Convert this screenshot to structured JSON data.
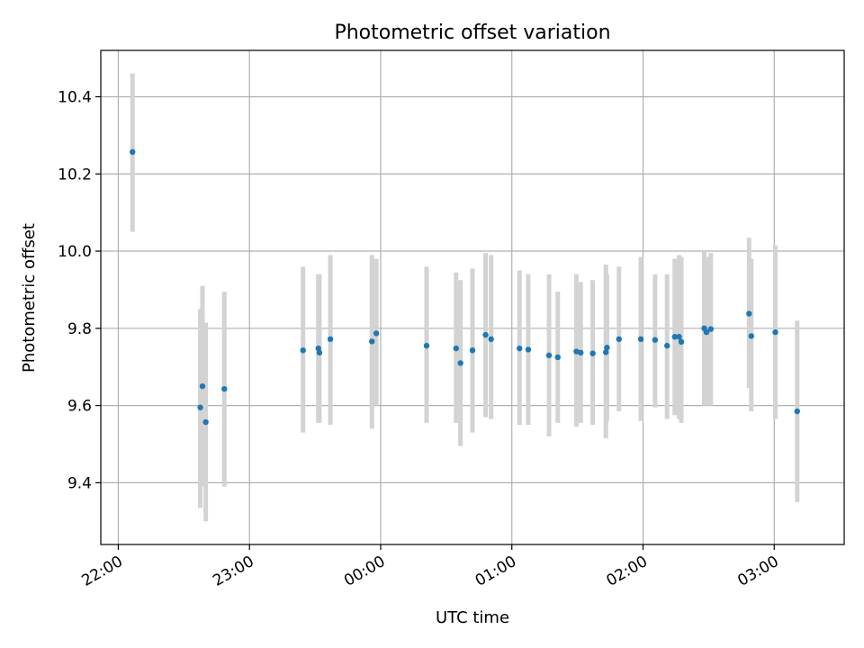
{
  "chart_data": {
    "type": "scatter",
    "title": "Photometric offset variation",
    "xlabel": "UTC time",
    "ylabel": "Photometric offset",
    "x_ticks": [
      "22:00",
      "23:00",
      "00:00",
      "01:00",
      "02:00",
      "03:00"
    ],
    "y_ticks": [
      "9.4",
      "9.6",
      "9.8",
      "10.0",
      "10.2",
      "10.4"
    ],
    "xlim_minutes_from_first_tick": [
      -8,
      332
    ],
    "ylim": [
      9.24,
      10.52
    ],
    "grid": true,
    "point_color": "#1f77b4",
    "errorbar_color": "#d3d3d3",
    "points": [
      {
        "t": 6.5,
        "y": 10.257,
        "lo": 10.05,
        "hi": 10.46
      },
      {
        "t": 37.5,
        "y": 9.595,
        "lo": 9.335,
        "hi": 9.85
      },
      {
        "t": 38.5,
        "y": 9.65,
        "lo": 9.39,
        "hi": 9.91
      },
      {
        "t": 40.0,
        "y": 9.557,
        "lo": 9.3,
        "hi": 9.815
      },
      {
        "t": 48.5,
        "y": 9.643,
        "lo": 9.39,
        "hi": 9.895
      },
      {
        "t": 84.5,
        "y": 9.743,
        "lo": 9.53,
        "hi": 9.96
      },
      {
        "t": 91.5,
        "y": 9.748,
        "lo": 9.555,
        "hi": 9.94
      },
      {
        "t": 92.0,
        "y": 9.737,
        "lo": 9.555,
        "hi": 9.94
      },
      {
        "t": 97.0,
        "y": 9.772,
        "lo": 9.55,
        "hi": 9.99
      },
      {
        "t": 116.0,
        "y": 9.766,
        "lo": 9.54,
        "hi": 9.99
      },
      {
        "t": 118.0,
        "y": 9.787,
        "lo": 9.6,
        "hi": 9.98
      },
      {
        "t": 141.0,
        "y": 9.755,
        "lo": 9.555,
        "hi": 9.96
      },
      {
        "t": 154.5,
        "y": 9.748,
        "lo": 9.555,
        "hi": 9.945
      },
      {
        "t": 156.5,
        "y": 9.71,
        "lo": 9.495,
        "hi": 9.925
      },
      {
        "t": 162.0,
        "y": 9.743,
        "lo": 9.53,
        "hi": 9.955
      },
      {
        "t": 168.0,
        "y": 9.783,
        "lo": 9.57,
        "hi": 9.995
      },
      {
        "t": 170.5,
        "y": 9.772,
        "lo": 9.565,
        "hi": 9.99
      },
      {
        "t": 183.5,
        "y": 9.748,
        "lo": 9.55,
        "hi": 9.95
      },
      {
        "t": 187.5,
        "y": 9.745,
        "lo": 9.55,
        "hi": 9.94
      },
      {
        "t": 197.0,
        "y": 9.73,
        "lo": 9.52,
        "hi": 9.94
      },
      {
        "t": 201.0,
        "y": 9.725,
        "lo": 9.555,
        "hi": 9.895
      },
      {
        "t": 209.5,
        "y": 9.74,
        "lo": 9.545,
        "hi": 9.94
      },
      {
        "t": 211.5,
        "y": 9.737,
        "lo": 9.555,
        "hi": 9.92
      },
      {
        "t": 217.0,
        "y": 9.735,
        "lo": 9.55,
        "hi": 9.925
      },
      {
        "t": 223.0,
        "y": 9.738,
        "lo": 9.515,
        "hi": 9.965
      },
      {
        "t": 223.5,
        "y": 9.75,
        "lo": 9.56,
        "hi": 9.94
      },
      {
        "t": 229.0,
        "y": 9.772,
        "lo": 9.585,
        "hi": 9.96
      },
      {
        "t": 239.0,
        "y": 9.772,
        "lo": 9.56,
        "hi": 9.985
      },
      {
        "t": 245.5,
        "y": 9.77,
        "lo": 9.595,
        "hi": 9.94
      },
      {
        "t": 251.0,
        "y": 9.755,
        "lo": 9.565,
        "hi": 9.94
      },
      {
        "t": 254.5,
        "y": 9.778,
        "lo": 9.575,
        "hi": 9.98
      },
      {
        "t": 256.5,
        "y": 9.778,
        "lo": 9.565,
        "hi": 9.99
      },
      {
        "t": 257.5,
        "y": 9.765,
        "lo": 9.555,
        "hi": 9.985
      },
      {
        "t": 268.0,
        "y": 9.8,
        "lo": 9.6,
        "hi": 10.0
      },
      {
        "t": 269.0,
        "y": 9.79,
        "lo": 9.6,
        "hi": 9.985
      },
      {
        "t": 271.0,
        "y": 9.798,
        "lo": 9.6,
        "hi": 9.995
      },
      {
        "t": 288.5,
        "y": 9.838,
        "lo": 9.645,
        "hi": 10.035
      },
      {
        "t": 289.5,
        "y": 9.78,
        "lo": 9.585,
        "hi": 9.98
      },
      {
        "t": 300.5,
        "y": 9.79,
        "lo": 9.565,
        "hi": 10.015
      },
      {
        "t": 310.5,
        "y": 9.585,
        "lo": 9.35,
        "hi": 9.82
      }
    ]
  }
}
